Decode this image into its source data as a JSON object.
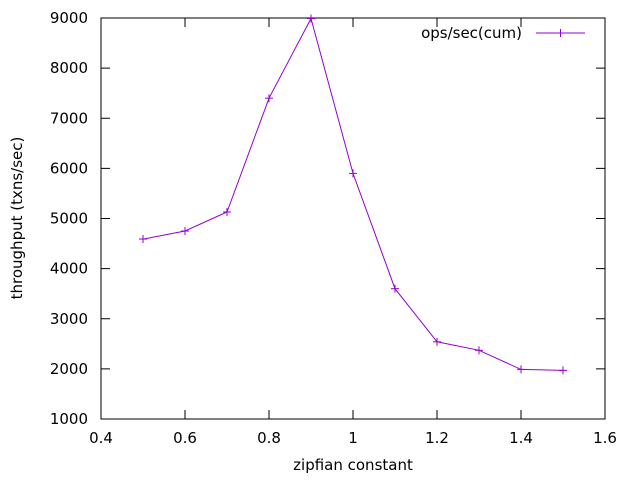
{
  "chart_data": {
    "type": "line",
    "title": "",
    "xlabel": "zipfian constant",
    "ylabel": "throughput (txns/sec)",
    "xlim": [
      0.4,
      1.6
    ],
    "ylim": [
      1000,
      9000
    ],
    "x_ticks": [
      0.4,
      0.6,
      0.8,
      1,
      1.2,
      1.4,
      1.6
    ],
    "x_tick_labels": [
      "0.4",
      "0.6",
      "0.8",
      "1",
      "1.2",
      "1.4",
      "1.6"
    ],
    "y_ticks": [
      1000,
      2000,
      3000,
      4000,
      5000,
      6000,
      7000,
      8000,
      9000
    ],
    "y_tick_labels": [
      "1000",
      "2000",
      "3000",
      "4000",
      "5000",
      "6000",
      "7000",
      "8000",
      "9000"
    ],
    "grid": false,
    "legend_position": "top-right",
    "series": [
      {
        "name": "ops/sec(cum)",
        "color": "#9400d3",
        "marker": "plus",
        "x": [
          0.5,
          0.6,
          0.7,
          0.8,
          0.9,
          1.0,
          1.1,
          1.2,
          1.3,
          1.4,
          1.5
        ],
        "values": [
          4590,
          4750,
          5130,
          7400,
          8990,
          5900,
          3600,
          2540,
          2370,
          1990,
          1970
        ]
      }
    ]
  }
}
